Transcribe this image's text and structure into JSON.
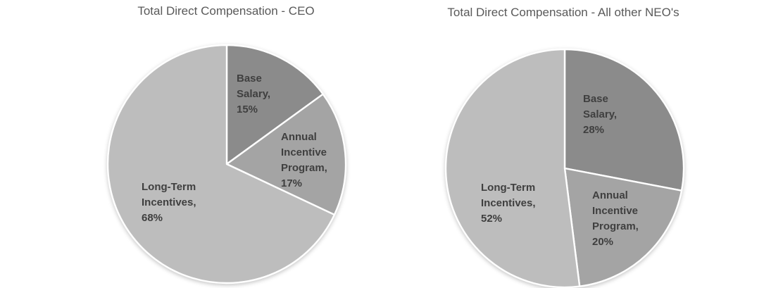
{
  "styles": {
    "background": "#ffffff",
    "title_color": "#595959",
    "label_color": "#3f3f3f",
    "separator_color": "#ffffff"
  },
  "chart_data": [
    {
      "type": "pie",
      "title": "Total Direct Compensation - CEO",
      "categories": [
        "Base Salary",
        "Annual Incentive Program",
        "Long-Term Incentives"
      ],
      "values": [
        15,
        17,
        68
      ],
      "unit": "percent",
      "start_angle_deg": 0,
      "direction": "clockwise",
      "legend_position": "none",
      "slices": [
        {
          "name": "Base Salary",
          "value": 15,
          "color": "#8b8b8b",
          "label_lines": [
            "Base",
            "Salary,",
            "15%"
          ]
        },
        {
          "name": "Annual Incentive Program",
          "value": 17,
          "color": "#a4a4a4",
          "label_lines": [
            "Annual",
            "Incentive",
            "Program,",
            "17%"
          ]
        },
        {
          "name": "Long-Term Incentives",
          "value": 68,
          "color": "#bdbdbd",
          "label_lines": [
            "Long-Term",
            "Incentives,",
            "68%"
          ]
        }
      ]
    },
    {
      "type": "pie",
      "title": "Total Direct Compensation - All other NEO's",
      "categories": [
        "Base Salary",
        "Annual Incentive Program",
        "Long-Term Incentives"
      ],
      "values": [
        28,
        20,
        52
      ],
      "unit": "percent",
      "start_angle_deg": 0,
      "direction": "clockwise",
      "legend_position": "none",
      "slices": [
        {
          "name": "Base Salary",
          "value": 28,
          "color": "#8b8b8b",
          "label_lines": [
            "Base",
            "Salary,",
            "28%"
          ]
        },
        {
          "name": "Annual Incentive Program",
          "value": 20,
          "color": "#a4a4a4",
          "label_lines": [
            "Annual",
            "Incentive",
            "Program,",
            "20%"
          ]
        },
        {
          "name": "Long-Term Incentives",
          "value": 52,
          "color": "#bdbdbd",
          "label_lines": [
            "Long-Term",
            "Incentives,",
            "52%"
          ]
        }
      ]
    }
  ]
}
